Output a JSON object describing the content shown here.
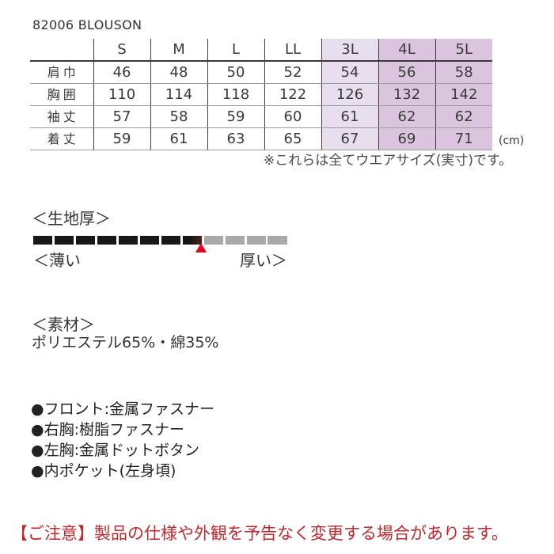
{
  "page": {
    "title": "82006 BLOUSON"
  },
  "size_table": {
    "columns": [
      "S",
      "M",
      "L",
      "LL",
      "3L",
      "4L",
      "5L"
    ],
    "highlighted_columns": [
      "3L",
      "4L",
      "5L"
    ],
    "rows": [
      {
        "label": "肩巾",
        "values": [
          46,
          48,
          50,
          52,
          54,
          56,
          58
        ]
      },
      {
        "label": "胸囲",
        "values": [
          110,
          114,
          118,
          122,
          126,
          132,
          142
        ]
      },
      {
        "label": "袖丈",
        "values": [
          57,
          58,
          59,
          60,
          61,
          62,
          62
        ]
      },
      {
        "label": "着丈",
        "values": [
          59,
          61,
          63,
          65,
          67,
          69,
          71
        ]
      }
    ],
    "unit_label": "(cm)",
    "note": "※これらは全てウエアサイズ(実寸)です。"
  },
  "fabric_thickness": {
    "heading": "＜生地厚＞",
    "left_label": "＜薄い",
    "right_label": "厚い＞",
    "segments_total": 12,
    "segments_filled": 8,
    "marker_at_segment": 8,
    "colors": {
      "filled": "#181818",
      "empty": "#a9a9a9",
      "marker": "#e60012"
    }
  },
  "material": {
    "heading": "＜素材＞",
    "composition": "ポリエステル65%・綿35%"
  },
  "features": {
    "items": [
      "●フロント:金属ファスナー",
      "●右胸:樹脂ファスナー",
      "●左胸:金属ドットボタン",
      "●内ポケット(左身頃)"
    ]
  },
  "footer": {
    "notice": "【ご注意】製品の仕様や外観を予告なく変更する場合があります。",
    "notice_color": "#c1272d"
  },
  "colors": {
    "highlight_3l": "#e8deee",
    "highlight_4l_5l": "#dbc4de",
    "table_line_dark": "#3a3a3a",
    "table_line_light": "#9b9b9b"
  }
}
